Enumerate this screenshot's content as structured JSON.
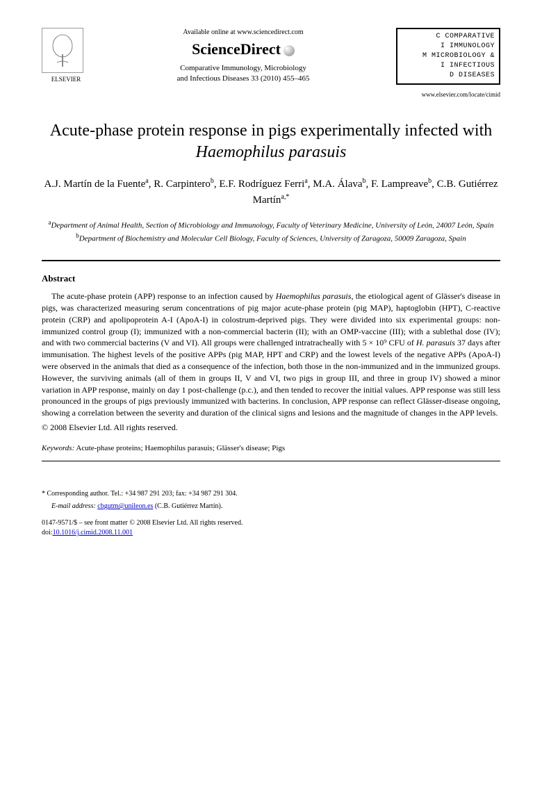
{
  "header": {
    "elsevier_label": "ELSEVIER",
    "available_text": "Available online at www.sciencedirect.com",
    "sciencedirect": "ScienceDirect",
    "journal_name": "Comparative Immunology, Microbiology",
    "journal_name2": "and Infectious Diseases 33 (2010) 455–465",
    "journal_box_lines": [
      "COMPARATIVE",
      "IMMUNOLOGY",
      "MICROBIOLOGY &",
      "INFECTIOUS",
      "DISEASES"
    ],
    "journal_box_prefix": [
      "C",
      "I",
      "M",
      "I",
      "D"
    ],
    "journal_url": "www.elsevier.com/locate/cimid"
  },
  "title_part1": "Acute-phase protein response in pigs experimentally infected with ",
  "title_italic": "Haemophilus parasuis",
  "authors_html": "A.J. Martín de la Fuente|a|, R. Carpintero|b|, E.F. Rodríguez Ferri|a|, M.A. Álava|b|, F. Lampreave|b|, C.B. Gutiérrez Martín|a,*",
  "affiliations": {
    "a": "Department of Animal Health, Section of Microbiology and Immunology, Faculty of Veterinary Medicine, University of León, 24007 León, Spain",
    "b": "Department of Biochemistry and Molecular Cell Biology, Faculty of Sciences, University of Zaragoza, 50009 Zaragoza, Spain"
  },
  "abstract_heading": "Abstract",
  "abstract_text": "The acute-phase protein (APP) response to an infection caused by Haemophilus parasuis, the etiological agent of Glässer's disease in pigs, was characterized measuring serum concentrations of pig major acute-phase protein (pig MAP), haptoglobin (HPT), C-reactive protein (CRP) and apolipoprotein A-I (ApoA-I) in colostrum-deprived pigs. They were divided into six experimental groups: non-immunized control group (I); immunized with a non-commercial bacterin (II); with an OMP-vaccine (III); with a sublethal dose (IV); and with two commercial bacterins (V and VI). All groups were challenged intratracheally with 5 × 10⁹ CFU of H. parasuis 37 days after immunisation. The highest levels of the positive APPs (pig MAP, HPT and CRP) and the lowest levels of the negative APPs (ApoA-I) were observed in the animals that died as a consequence of the infection, both those in the non-immunized and in the immunized groups. However, the surviving animals (all of them in groups II, V and VI, two pigs in group III, and three in group IV) showed a minor variation in APP response, mainly on day 1 post-challenge (p.c.), and then tended to recover the initial values. APP response was still less pronounced in the groups of pigs previously immunized with bacterins. In conclusion, APP response can reflect Glässer-disease ongoing, showing a correlation between the severity and duration of the clinical signs and lesions and the magnitude of changes in the APP levels.",
  "copyright": "© 2008 Elsevier Ltd. All rights reserved.",
  "keywords_label": "Keywords:",
  "keywords_text": "Acute-phase proteins; Haemophilus parasuis; Glässer's disease; Pigs",
  "footer": {
    "corresponding": "* Corresponding author. Tel.: +34 987 291 203; fax: +34 987 291 304.",
    "email_label": "E-mail address:",
    "email": "cbgutm@unileon.es",
    "email_person": "(C.B. Gutiérrez Martín).",
    "issn": "0147-9571/$ – see front matter © 2008 Elsevier Ltd. All rights reserved.",
    "doi_label": "doi:",
    "doi": "10.1016/j.cimid.2008.11.001"
  }
}
